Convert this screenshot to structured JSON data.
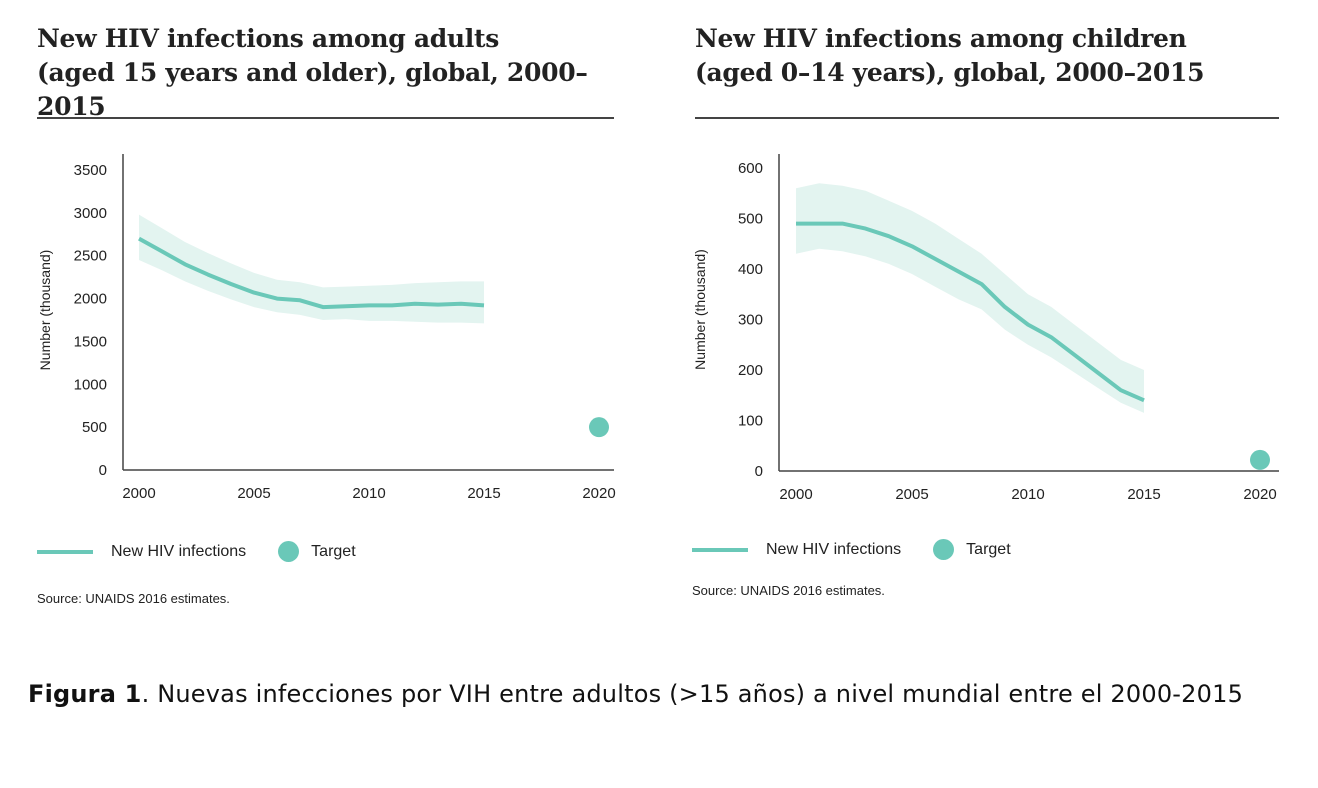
{
  "colors": {
    "line": "#6ac8b8",
    "band": "#e3f4f0",
    "axis": "#444444"
  },
  "chart_data": [
    {
      "type": "line",
      "title_line1": "New HIV infections among adults",
      "title_line2": "(aged 15 years and older), global, 2000–2015",
      "ylabel": "Number (thousand)",
      "xlabel": "",
      "xlim": [
        2000,
        2020
      ],
      "ylim": [
        0,
        3500
      ],
      "x_ticks": [
        2000,
        2005,
        2010,
        2015,
        2020
      ],
      "y_ticks": [
        0,
        500,
        1000,
        1500,
        2000,
        2500,
        3000,
        3500
      ],
      "series": [
        {
          "name": "New HIV infections",
          "x": [
            2000,
            2001,
            2002,
            2003,
            2004,
            2005,
            2006,
            2007,
            2008,
            2009,
            2010,
            2011,
            2012,
            2013,
            2014,
            2015
          ],
          "values": [
            2700,
            2550,
            2400,
            2280,
            2170,
            2070,
            2000,
            1980,
            1900,
            1910,
            1920,
            1920,
            1940,
            1930,
            1940,
            1920
          ],
          "lower": [
            2450,
            2330,
            2200,
            2090,
            1990,
            1900,
            1840,
            1810,
            1750,
            1760,
            1740,
            1740,
            1730,
            1720,
            1720,
            1710
          ],
          "upper": [
            2980,
            2820,
            2660,
            2530,
            2410,
            2300,
            2220,
            2190,
            2130,
            2140,
            2150,
            2160,
            2180,
            2190,
            2200,
            2200
          ]
        }
      ],
      "target": {
        "name": "Target",
        "x": 2020,
        "value": 500
      },
      "legend": {
        "line_label": "New HIV infections",
        "target_label": "Target"
      },
      "source": "Source: UNAIDS 2016 estimates."
    },
    {
      "type": "line",
      "title_line1": "New HIV infections among children",
      "title_line2": "(aged 0–14 years), global, 2000–2015",
      "ylabel": "Number (thousand)",
      "xlabel": "",
      "xlim": [
        2000,
        2020
      ],
      "ylim": [
        0,
        600
      ],
      "x_ticks": [
        2000,
        2005,
        2010,
        2015,
        2020
      ],
      "y_ticks": [
        0,
        100,
        200,
        300,
        400,
        500,
        600
      ],
      "series": [
        {
          "name": "New HIV infections",
          "x": [
            2000,
            2001,
            2002,
            2003,
            2004,
            2005,
            2006,
            2007,
            2008,
            2009,
            2010,
            2011,
            2012,
            2013,
            2014,
            2015
          ],
          "values": [
            490,
            490,
            490,
            480,
            465,
            445,
            420,
            395,
            370,
            325,
            290,
            265,
            230,
            195,
            160,
            140
          ],
          "lower": [
            430,
            440,
            435,
            425,
            410,
            390,
            365,
            340,
            320,
            280,
            250,
            225,
            195,
            165,
            135,
            115
          ],
          "upper": [
            560,
            570,
            565,
            555,
            535,
            515,
            490,
            460,
            430,
            390,
            350,
            325,
            290,
            255,
            220,
            200
          ]
        }
      ],
      "target": {
        "name": "Target",
        "x": 2020,
        "value": 22
      },
      "legend": {
        "line_label": "New HIV infections",
        "target_label": "Target"
      },
      "source": "Source: UNAIDS 2016 estimates."
    }
  ],
  "caption": {
    "label": "Figura 1",
    "text": ". Nuevas infecciones por VIH entre adultos (>15 años) a nivel mundial entre el 2000-2015"
  }
}
